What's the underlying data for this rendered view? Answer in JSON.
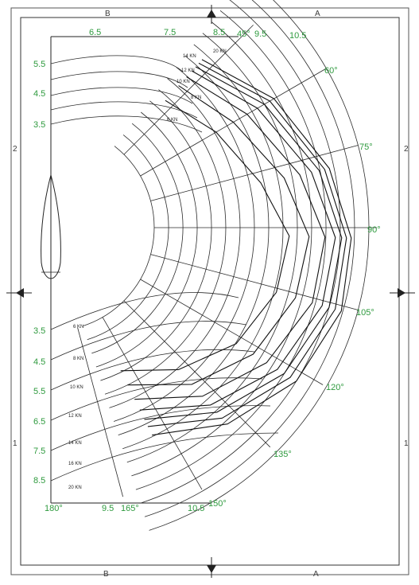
{
  "frame": {
    "top_left": "B",
    "top_right": "A",
    "bottom_left": "B",
    "bottom_right": "A",
    "left_mid": "2",
    "left_low": "1",
    "right_mid": "2",
    "right_low": "1"
  },
  "top_speed_labels": [
    "6.5",
    "7.5",
    "8.5",
    "9.5",
    "10.5"
  ],
  "left_upper_speed_labels": [
    "5.5",
    "4.5",
    "3.5"
  ],
  "left_lower_speed_labels": [
    "3.5",
    "4.5",
    "5.5",
    "6.5",
    "7.5",
    "8.5"
  ],
  "bottom_speed_labels": [
    "9.5",
    "10.5"
  ],
  "angle_labels": [
    "45°",
    "60°",
    "75°",
    "90°",
    "105°",
    "120°",
    "135°",
    "150°",
    "165°",
    "180°"
  ],
  "wind_labels_upper": [
    "14 KN",
    "20 KN",
    "12 KN",
    "10 KN",
    "8 KN",
    "6 KN"
  ],
  "wind_labels_lower": [
    "6 KN",
    "8 KN",
    "10 KN",
    "12 KN",
    "14 KN",
    "16 KN",
    "20 KN"
  ],
  "colors": {
    "label_green": "#2e9a3e",
    "line": "#1a1a1a"
  }
}
